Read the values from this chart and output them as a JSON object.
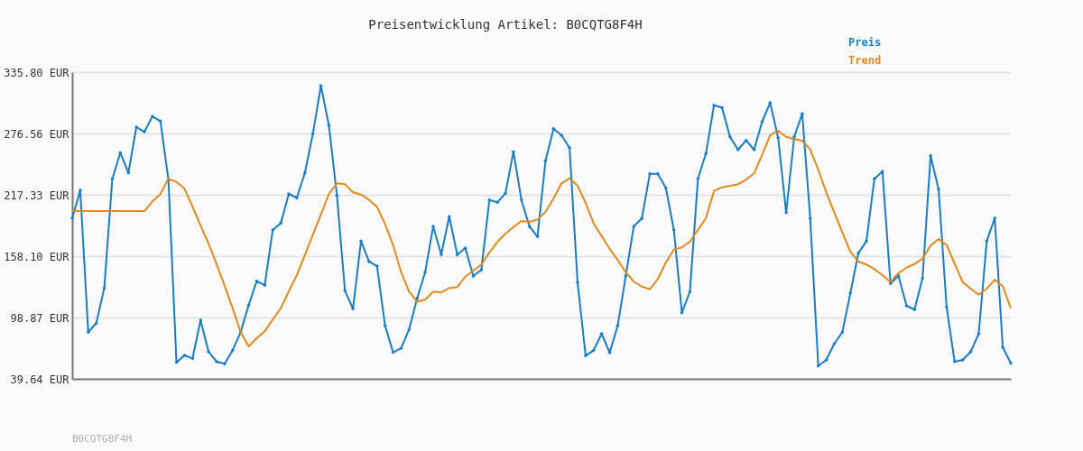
{
  "chart_data": {
    "type": "line",
    "title": "Preisentwicklung Artikel: B0CQTG8F4H",
    "categories": [
      null,
      null,
      null,
      null,
      null,
      null,
      null,
      null,
      null,
      null,
      null,
      null,
      null,
      null,
      null,
      null,
      null,
      null,
      null,
      null,
      null,
      null,
      null,
      null,
      null,
      null,
      null,
      null,
      null,
      null,
      null,
      null,
      null,
      null,
      null,
      null,
      null,
      null,
      null,
      null,
      null,
      null,
      null,
      null,
      null,
      null,
      null,
      null,
      null,
      null,
      null,
      null,
      null,
      null,
      null,
      null,
      null,
      null,
      null,
      null,
      null,
      null,
      null,
      null,
      null,
      null,
      null,
      null,
      null,
      null,
      null,
      null,
      null,
      null,
      null,
      null,
      null,
      null,
      null,
      null,
      null,
      null,
      null,
      null,
      null,
      null,
      null,
      null,
      null,
      null,
      null,
      null,
      null,
      null,
      null,
      null,
      null,
      null,
      null,
      null,
      null,
      null,
      null,
      null,
      null,
      null,
      null,
      null,
      null,
      null,
      null,
      null,
      null,
      null,
      null,
      null,
      null,
      null
    ],
    "series": [
      {
        "name": "Preis",
        "color": "#1a7dc4",
        "marker": "diamond",
        "values": [
          194.9,
          221.7,
          84.7,
          93.4,
          127.4,
          232.8,
          258.0,
          238.5,
          282.7,
          278.3,
          293.1,
          288.5,
          231.3,
          55.6,
          62.3,
          59.4,
          96.3,
          65.8,
          56.2,
          54.2,
          67.2,
          84.9,
          110.8,
          134.0,
          130.2,
          183.4,
          190.0,
          218.2,
          214.5,
          238.5,
          276.3,
          322.7,
          284.4,
          216.7,
          124.7,
          107.3,
          172.6,
          152.9,
          148.5,
          91.0,
          65.3,
          69.2,
          87.5,
          117.4,
          142.7,
          186.8,
          159.6,
          196.4,
          159.6,
          165.9,
          138.9,
          144.8,
          212.4,
          210.1,
          218.8,
          258.9,
          212.4,
          186.8,
          177.0,
          250.2,
          281.2,
          274.8,
          262.6,
          132.6,
          62.0,
          67.2,
          83.2,
          64.9,
          91.0,
          138.9,
          186.8,
          194.4,
          237.6,
          237.6,
          224.0,
          183.4,
          103.5,
          123.9,
          232.8,
          257.4,
          303.8,
          301.6,
          273.3,
          260.9,
          269.9,
          260.9,
          287.9,
          306.2,
          272.5,
          200.2,
          273.3,
          295.7,
          194.4,
          52.1,
          57.9,
          73.6,
          84.7,
          122.4,
          161.0,
          172.6,
          232.8,
          240.0,
          131.7,
          139.2,
          110.2,
          106.5,
          136.9,
          255.1,
          222.6,
          108.7,
          56.2,
          57.9,
          65.8,
          83.2,
          172.6,
          194.9,
          70.1,
          54.7
        ]
      },
      {
        "name": "Trend",
        "color": "#e08a1e",
        "marker": "none",
        "values": [
          201.6,
          201.6,
          201.6,
          201.6,
          201.6,
          201.6,
          201.6,
          201.6,
          201.6,
          201.6,
          211.0,
          218.2,
          232.8,
          229.8,
          223.4,
          206.0,
          187.7,
          170.3,
          150.3,
          129.4,
          107.8,
          84.7,
          71.0,
          78.8,
          85.5,
          96.9,
          107.8,
          124.1,
          139.8,
          159.0,
          179.0,
          198.2,
          218.2,
          228.4,
          227.5,
          219.7,
          217.6,
          212.4,
          205.7,
          189.2,
          168.8,
          142.7,
          123.9,
          114.3,
          116.0,
          123.9,
          123.0,
          127.4,
          128.2,
          138.3,
          144.2,
          150.0,
          161.6,
          171.8,
          179.6,
          186.2,
          192.1,
          191.2,
          193.5,
          200.8,
          213.9,
          228.4,
          233.3,
          226.3,
          209.5,
          189.7,
          177.5,
          165.1,
          154.4,
          142.7,
          133.5,
          128.8,
          126.1,
          136.1,
          152.0,
          164.5,
          166.6,
          172.3,
          183.4,
          194.9,
          221.1,
          224.6,
          226.0,
          227.5,
          232.1,
          238.0,
          255.9,
          274.8,
          279.2,
          273.3,
          271.1,
          269.6,
          261.2,
          241.5,
          219.7,
          200.2,
          181.0,
          162.5,
          152.9,
          150.0,
          145.6,
          139.8,
          133.1,
          141.8,
          147.0,
          150.5,
          155.8,
          168.3,
          174.7,
          168.8,
          150.9,
          133.1,
          126.7,
          120.9,
          126.7,
          135.4,
          129.1,
          107.8
        ]
      }
    ],
    "ylim": [
      39.64,
      335.8
    ],
    "yticks": [
      {
        "value": 39.64,
        "label": "39.64 EUR"
      },
      {
        "value": 98.87,
        "label": "98.87 EUR"
      },
      {
        "value": 158.1,
        "label": "158.10 EUR"
      },
      {
        "value": 217.33,
        "label": "217.33 EUR"
      },
      {
        "value": 276.56,
        "label": "276.56 EUR"
      },
      {
        "value": 335.8,
        "label": "335.80 EUR"
      }
    ],
    "grid": "y",
    "legend": "top right",
    "tick_labels": "y",
    "line_style": "solid",
    "annotations": [
      "B0CQTG8F4H"
    ]
  }
}
